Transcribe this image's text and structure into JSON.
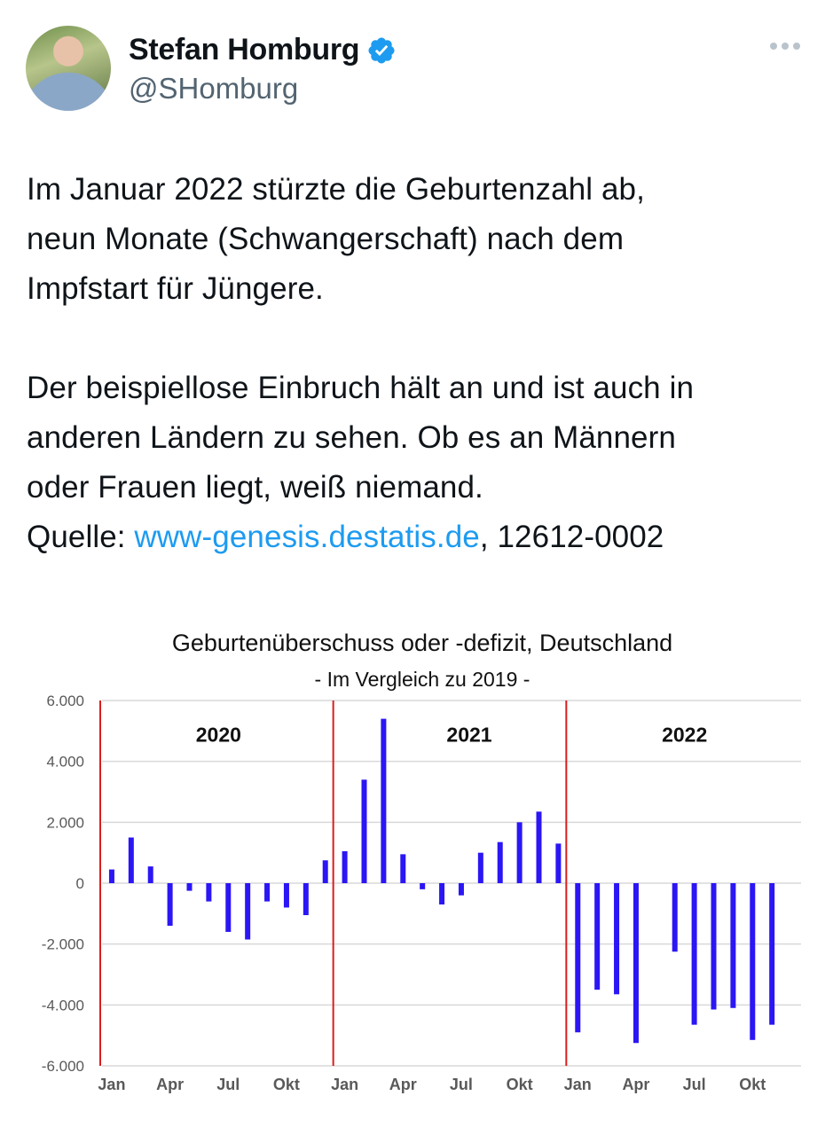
{
  "author": {
    "name": "Stefan Homburg",
    "handle": "@SHomburg"
  },
  "tweet": {
    "line1": "Im Januar 2022 stürzte die Geburtenzahl ab,",
    "line2": "neun Monate (Schwangerschaft) nach dem",
    "line3": "Impfstart für Jüngere.",
    "line4": "Der beispiellose Einbruch hält an und ist auch in",
    "line5": "anderen Ländern zu sehen. Ob es an Männern",
    "line6": "oder Frauen liegt, weiß niemand.",
    "source_prefix": "Quelle: ",
    "source_link": "www-genesis.destatis.de",
    "source_suffix": ", 12612-0002"
  },
  "colors": {
    "bar": "#2b16f5",
    "divider": "#d91e1e",
    "link": "#1d9bf0",
    "grid": "#d9d9d9"
  },
  "chart_data": {
    "type": "bar",
    "title": "Geburtenüberschuss oder -defizit, Deutschland",
    "subtitle": "- Im Vergleich zu 2019 -",
    "ylim": [
      -6000,
      6000
    ],
    "yticks": [
      6000,
      4000,
      2000,
      0,
      -2000,
      -4000,
      -6000
    ],
    "ytick_labels": [
      "6.000",
      "4.000",
      "2.000",
      "0",
      "-2.000",
      "-4.000",
      "-6.000"
    ],
    "grid": true,
    "years": [
      "2020",
      "2021",
      "2022"
    ],
    "xtick_labels": [
      "Jan",
      "Apr",
      "Jul",
      "Okt",
      "Jan",
      "Apr",
      "Jul",
      "Okt",
      "Jan",
      "Apr",
      "Jul",
      "Okt"
    ],
    "xtick_month_index": [
      0,
      3,
      6,
      9,
      12,
      15,
      18,
      21,
      24,
      27,
      30,
      33
    ],
    "months": 36,
    "values": [
      450,
      1500,
      550,
      -1400,
      -250,
      -600,
      -1600,
      -1850,
      -600,
      -800,
      -1050,
      750,
      1050,
      3400,
      5400,
      950,
      -200,
      -700,
      -400,
      1000,
      1350,
      2000,
      2350,
      1300,
      -4900,
      -3500,
      -3650,
      -5250,
      null,
      -2250,
      -4650,
      -4150,
      -4100,
      -5150,
      -4650
    ]
  }
}
